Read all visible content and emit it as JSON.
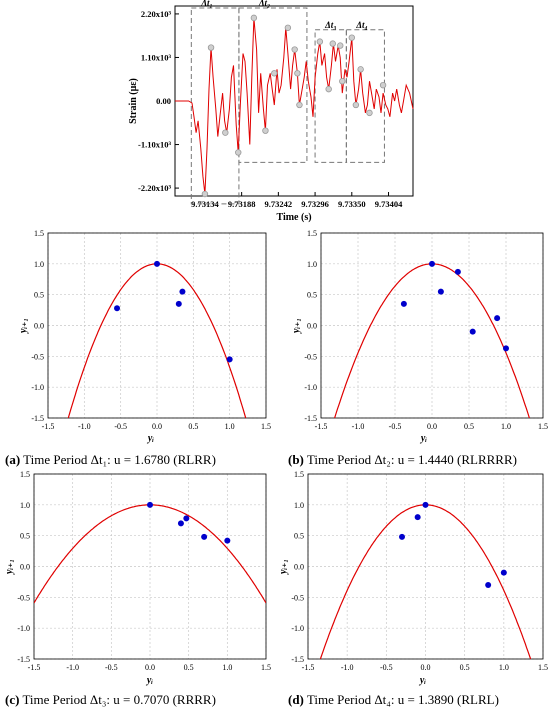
{
  "colors": {
    "signal": "#e00000",
    "parabola": "#e00000",
    "points": "#0000cc",
    "markers": "#9a9a9a",
    "grid": "#c8c8c8",
    "box": "#777777"
  },
  "chart_data": [
    {
      "id": "strain",
      "type": "line",
      "xlabel": "Time (s)",
      "ylabel": "Strain (με)",
      "xlim": [
        9.7309,
        9.7344
      ],
      "ylim": [
        -2.4,
        2.4
      ],
      "xticks": [
        9.73134,
        9.73188,
        9.73242,
        9.73296,
        9.7335,
        9.73404
      ],
      "xtick_labels": [
        "9.73134",
        "9.73188",
        "9.73242",
        "9.73296",
        "9.73350",
        "9.73404"
      ],
      "yticks": [
        2.2,
        1.1,
        0,
        -1.1,
        -2.2
      ],
      "ytick_labels": [
        "2.20x10³",
        "1.10x10³",
        "0.00",
        "-1.10x10³",
        "-2.20x10³"
      ],
      "series": [
        {
          "x": [
            9.7309,
            9.731,
            9.73106,
            9.7311,
            9.73115,
            9.73118,
            9.73121,
            9.73124,
            9.73128,
            9.73131,
            9.73134,
            9.73137,
            9.7314,
            9.73143,
            9.73146,
            9.7315,
            9.73153,
            9.73156,
            9.7316,
            9.73163,
            9.73166,
            9.7317,
            9.73173,
            9.73176,
            9.7318,
            9.73183,
            9.73186,
            9.7319,
            9.73193,
            9.73196,
            9.732,
            9.73203,
            9.73206,
            9.7321,
            9.73213,
            9.73216,
            9.7322,
            9.73223,
            9.73226,
            9.7323,
            9.73233,
            9.73236,
            9.7324,
            9.73243,
            9.73246,
            9.7325,
            9.73253,
            9.73256,
            9.7326,
            9.73263,
            9.73266,
            9.7327,
            9.73273,
            9.73276,
            9.7328,
            9.73283,
            9.73286,
            9.7329,
            9.73293,
            9.73296,
            9.733,
            9.73303,
            9.73306,
            9.7331,
            9.73313,
            9.73316,
            9.7332,
            9.73323,
            9.73326,
            9.7333,
            9.73333,
            9.73336,
            9.7334,
            9.73343,
            9.73346,
            9.7335,
            9.73353,
            9.73356,
            9.7336,
            9.73363,
            9.73366,
            9.7337,
            9.73373,
            9.73376,
            9.7338,
            9.73383,
            9.73386,
            9.7339,
            9.73393,
            9.73396,
            9.734,
            9.73403,
            9.73406,
            9.7341,
            9.73413,
            9.73416,
            9.7342,
            9.73423,
            9.73426,
            9.7343,
            9.73435,
            9.7344
          ],
          "y": [
            0,
            0,
            0,
            0,
            -0.05,
            -0.4,
            -0.8,
            -0.5,
            -1.2,
            -1.9,
            -2.35,
            -1.2,
            0.3,
            1.35,
            0.6,
            -0.2,
            -0.9,
            -0.4,
            0.2,
            -0.5,
            -0.8,
            -0.2,
            0.6,
            0.9,
            -0.6,
            -1.3,
            -0.1,
            1.2,
            1.0,
            0.2,
            -1.1,
            0.6,
            2.1,
            1.3,
            -0.3,
            0.7,
            -0.2,
            -0.75,
            0.4,
            0.7,
            0.3,
            -0.1,
            0.8,
            0.2,
            0.4,
            1.1,
            1.85,
            1.2,
            0.3,
            0.9,
            1.3,
            0.7,
            -0.1,
            0.2,
            0.6,
            1.0,
            0.5,
            0.1,
            -0.4,
            0.6,
            1.2,
            1.5,
            0.9,
            1.2,
            0.6,
            0.3,
            0.9,
            1.45,
            1.0,
            1.4,
            1.1,
            0.2,
            0.8,
            0.6,
            1.0,
            1.6,
            0.5,
            -0.1,
            0.3,
            0.8,
            0.2,
            -0.3,
            -0.1,
            0.5,
            0.1,
            -0.2,
            0.3,
            0.1,
            -0.3,
            0.2,
            -0.1,
            -0.2,
            -0.4,
            0.2,
            0.0,
            0.3,
            -0.1,
            -0.3,
            0.0,
            0.4,
            0.2,
            -0.2
          ]
        }
      ],
      "markers": [
        {
          "x": 9.73134,
          "y": -2.35
        },
        {
          "x": 9.73143,
          "y": 1.35
        },
        {
          "x": 9.73164,
          "y": -0.8
        },
        {
          "x": 9.73183,
          "y": -1.3
        },
        {
          "x": 9.73206,
          "y": 2.1
        },
        {
          "x": 9.73223,
          "y": -0.75
        },
        {
          "x": 9.73236,
          "y": 0.7
        },
        {
          "x": 9.73256,
          "y": 1.85
        },
        {
          "x": 9.73266,
          "y": 1.3
        },
        {
          "x": 9.7327,
          "y": 0.7
        },
        {
          "x": 9.73273,
          "y": -0.1
        },
        {
          "x": 9.73303,
          "y": 1.5
        },
        {
          "x": 9.73316,
          "y": 0.3
        },
        {
          "x": 9.73322,
          "y": 1.45
        },
        {
          "x": 9.73333,
          "y": 1.4
        },
        {
          "x": 9.73336,
          "y": 0.5
        },
        {
          "x": 9.7335,
          "y": 1.6
        },
        {
          "x": 9.73356,
          "y": -0.1
        },
        {
          "x": 9.73363,
          "y": 0.8
        },
        {
          "x": 9.73376,
          "y": -0.3
        },
        {
          "x": 9.73396,
          "y": 0.4
        }
      ],
      "boxes": [
        {
          "label": "Δt₁",
          "x0": 9.73114,
          "x1": 9.73184,
          "y0": -2.6,
          "y1": 2.35
        },
        {
          "label": "Δt₂",
          "x0": 9.73184,
          "x1": 9.73284,
          "y0": -1.55,
          "y1": 2.35
        },
        {
          "label": "Δt₃",
          "x0": 9.73296,
          "x1": 9.73342,
          "y0": -1.55,
          "y1": 1.8
        },
        {
          "label": "Δt₄",
          "x0": 9.73342,
          "x1": 9.73398,
          "y0": -1.55,
          "y1": 1.8
        }
      ]
    },
    {
      "id": "a",
      "type": "scatter",
      "caption_bold": "(a)",
      "caption_text": " Time Period Δt₁: u = 1.6780 (RLRR)",
      "xlabel": "yᵢ",
      "ylabel": "yᵢ₊₁",
      "xlim": [
        -1.5,
        1.5
      ],
      "ylim": [
        -1.5,
        1.5
      ],
      "ticks": [
        -1.5,
        -1.0,
        -0.5,
        0.0,
        0.5,
        1.0,
        1.5
      ],
      "tick_labels": [
        "-1.5",
        "-1.0",
        "-0.5",
        "0.0",
        "0.5",
        "1.0",
        "1.5"
      ],
      "u": 1.678,
      "points": [
        {
          "x": 0.0,
          "y": 1.0
        },
        {
          "x": -0.55,
          "y": 0.28
        },
        {
          "x": 0.3,
          "y": 0.35
        },
        {
          "x": 0.35,
          "y": 0.55
        },
        {
          "x": 1.0,
          "y": -0.55
        }
      ]
    },
    {
      "id": "b",
      "type": "scatter",
      "caption_bold": "(b)",
      "caption_text": " Time Period Δt₂: u = 1.4440 (RLRRRR)",
      "xlabel": "yᵢ",
      "ylabel": "yᵢ₊₁",
      "xlim": [
        -1.5,
        1.5
      ],
      "ylim": [
        -1.5,
        1.5
      ],
      "ticks": [
        -1.5,
        -1.0,
        -0.5,
        0.0,
        0.5,
        1.0,
        1.5
      ],
      "tick_labels": [
        "-1.5",
        "-1.0",
        "-0.5",
        "0.0",
        "0.5",
        "1.0",
        "1.5"
      ],
      "u": 1.444,
      "points": [
        {
          "x": 0.0,
          "y": 1.0
        },
        {
          "x": -0.38,
          "y": 0.35
        },
        {
          "x": 0.12,
          "y": 0.55
        },
        {
          "x": 0.35,
          "y": 0.87
        },
        {
          "x": 0.55,
          "y": -0.1
        },
        {
          "x": 0.88,
          "y": 0.12
        },
        {
          "x": 1.0,
          "y": -0.37
        }
      ]
    },
    {
      "id": "c",
      "type": "scatter",
      "caption_bold": "(c)",
      "caption_text": " Time Period Δt₃: u = 0.7070 (RRRR)",
      "xlabel": "yᵢ",
      "ylabel": "yᵢ₊₁",
      "xlim": [
        -1.5,
        1.5
      ],
      "ylim": [
        -1.5,
        1.5
      ],
      "ticks": [
        -1.5,
        -1.0,
        -0.5,
        0.0,
        0.5,
        1.0,
        1.5
      ],
      "tick_labels": [
        "-1.5",
        "-1.0",
        "-0.5",
        "0.0",
        "0.5",
        "1.0",
        "1.5"
      ],
      "u": 0.707,
      "points": [
        {
          "x": 0.0,
          "y": 1.0
        },
        {
          "x": 0.4,
          "y": 0.7
        },
        {
          "x": 0.47,
          "y": 0.78
        },
        {
          "x": 0.7,
          "y": 0.48
        },
        {
          "x": 1.0,
          "y": 0.42
        }
      ]
    },
    {
      "id": "d",
      "type": "scatter",
      "caption_bold": "(d)",
      "caption_text": " Time Period Δt₄: u = 1.3890 (RLRL)",
      "xlabel": "yᵢ",
      "ylabel": "yᵢ₊₁",
      "xlim": [
        -1.5,
        1.5
      ],
      "ylim": [
        -1.5,
        1.5
      ],
      "ticks": [
        -1.5,
        -1.0,
        -0.5,
        0.0,
        0.5,
        1.0,
        1.5
      ],
      "tick_labels": [
        "-1.5",
        "-1.0",
        "-0.5",
        "0.0",
        "0.5",
        "1.0",
        "1.5"
      ],
      "u": 1.389,
      "points": [
        {
          "x": 0.0,
          "y": 1.0
        },
        {
          "x": -0.3,
          "y": 0.48
        },
        {
          "x": -0.1,
          "y": 0.8
        },
        {
          "x": 0.8,
          "y": -0.3
        },
        {
          "x": 1.0,
          "y": -0.1
        }
      ]
    }
  ]
}
